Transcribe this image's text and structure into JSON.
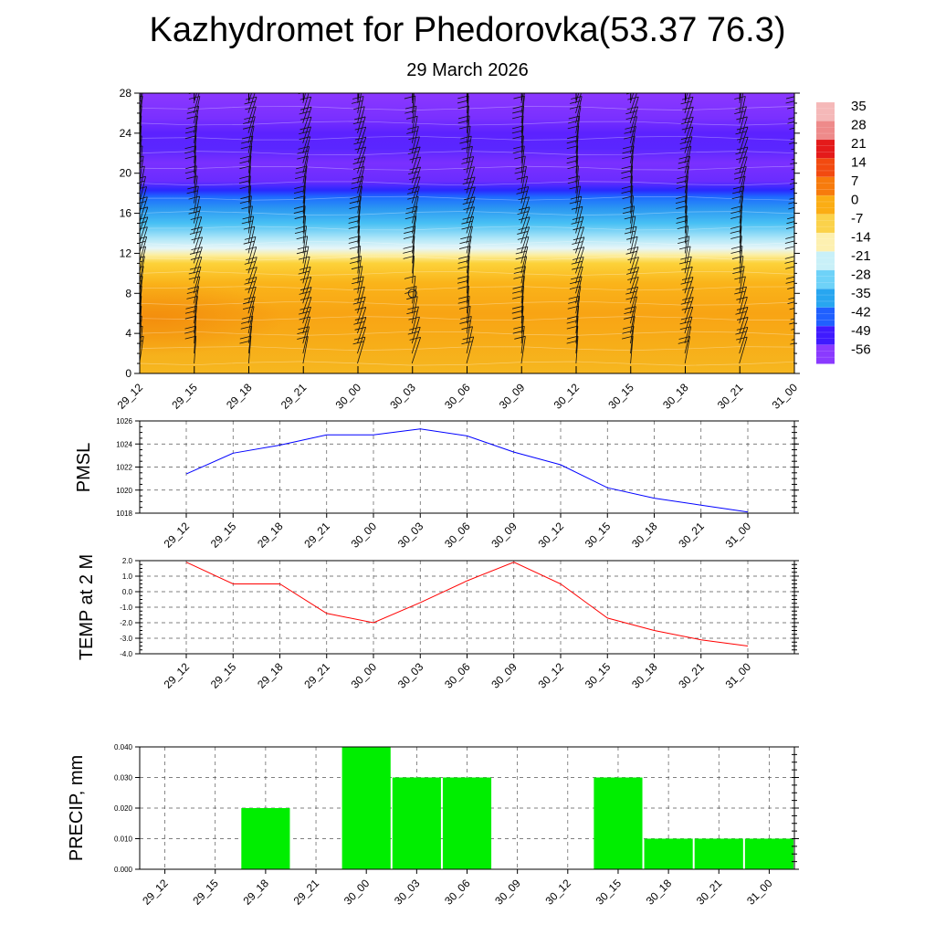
{
  "title": "Kazhydromet for Phedorovka(53.37 76.3)",
  "subtitle": "29 March 2026",
  "time_labels": [
    "29_12",
    "29_15",
    "29_18",
    "29_21",
    "30_00",
    "30_03",
    "30_06",
    "30_09",
    "30_12",
    "30_15",
    "30_18",
    "30_21",
    "31_00"
  ],
  "chart_data": [
    {
      "type": "heatmap",
      "name": "temperature-profile",
      "y_ticks": [
        0,
        4,
        8,
        12,
        16,
        20,
        24,
        28
      ],
      "ylim": [
        0,
        28
      ],
      "colorbar_labels": [
        "35",
        "28",
        "21",
        "14",
        "7",
        "0",
        "-7",
        "-14",
        "-21",
        "-28",
        "-35",
        "-42",
        "-49",
        "-56"
      ],
      "colorbar_colors": [
        "#f5b8b8",
        "#ee8a8a",
        "#e41a1a",
        "#f24a10",
        "#f77b0c",
        "#fbad14",
        "#fbd24a",
        "#fdf0b0",
        "#c8f0f8",
        "#6ed2f8",
        "#28a6f0",
        "#2060ff",
        "#3f1aff",
        "#8a3aff"
      ],
      "layers": [
        {
          "z": 0,
          "color": "#f6b720"
        },
        {
          "z": 3,
          "color": "#f7ad18"
        },
        {
          "z": 6,
          "color": "#f8a414"
        },
        {
          "z": 9,
          "color": "#fab41a"
        },
        {
          "z": 11,
          "color": "#fcd23a"
        },
        {
          "z": 11.8,
          "color": "#fdee9e"
        },
        {
          "z": 12.5,
          "color": "#e6f6f8"
        },
        {
          "z": 13.5,
          "color": "#aee6f8"
        },
        {
          "z": 15,
          "color": "#48c0f4"
        },
        {
          "z": 16.5,
          "color": "#2a96f2"
        },
        {
          "z": 17.6,
          "color": "#1e6cff"
        },
        {
          "z": 18.3,
          "color": "#2a28ff"
        },
        {
          "z": 19.2,
          "color": "#6a2cff"
        },
        {
          "z": 21,
          "color": "#7a30ff"
        },
        {
          "z": 22.5,
          "color": "#5a26ff"
        },
        {
          "z": 24,
          "color": "#5c22ff"
        },
        {
          "z": 25.5,
          "color": "#7a30ff"
        },
        {
          "z": 28,
          "color": "#8b38ff"
        }
      ],
      "warm_anomaly": {
        "t": 0.3,
        "z": 5.5,
        "color": "#f28a0c"
      },
      "wind_levels": [
        1,
        2,
        3,
        4,
        5,
        6,
        7,
        8,
        9,
        10,
        11,
        12,
        13,
        14,
        15,
        16,
        17,
        18,
        19,
        20,
        21,
        22,
        23,
        24,
        25,
        26,
        27
      ],
      "wind_columns": 13,
      "calm_marker": {
        "t": 5,
        "z": 8
      }
    },
    {
      "type": "line",
      "name": "PMSL",
      "ylabel": "PMSL",
      "ylim": [
        1018,
        1026
      ],
      "y_ticks": [
        1018,
        1020,
        1022,
        1024,
        1026
      ],
      "values": [
        1021.4,
        1023.2,
        1023.9,
        1024.8,
        1024.8,
        1025.3,
        1024.7,
        1023.3,
        1022.2,
        1020.2,
        1019.3,
        1018.7,
        1018.1
      ],
      "color": "#0000ff"
    },
    {
      "type": "line",
      "name": "TEMP at 2 M",
      "ylabel": "TEMP at 2 M",
      "ylim": [
        -4,
        2
      ],
      "y_ticks": [
        -4,
        -3,
        -2,
        -1,
        0,
        1,
        2
      ],
      "y_tick_labels": [
        "-4.0",
        "-3.0",
        "-2.0",
        "-1.0",
        "0.0",
        "1.0",
        "2.0"
      ],
      "values": [
        1.9,
        0.5,
        0.5,
        -1.4,
        -2.0,
        -0.7,
        0.7,
        1.9,
        0.5,
        -1.7,
        -2.5,
        -3.1,
        -3.5
      ],
      "color": "#ff0000"
    },
    {
      "type": "bar",
      "name": "PRECIP, mm",
      "ylabel": "PRECIP, mm",
      "ylim": [
        0,
        0.04
      ],
      "y_ticks": [
        0,
        0.01,
        0.02,
        0.03,
        0.04
      ],
      "y_tick_labels": [
        "0.000",
        "0.010",
        "0.020",
        "0.030",
        "0.040"
      ],
      "categories": [
        "29_12",
        "29_15",
        "29_18",
        "29_21",
        "30_00",
        "30_03",
        "30_06",
        "30_09",
        "30_12",
        "30_15",
        "30_18",
        "30_21",
        "31_00"
      ],
      "values": [
        0,
        0,
        0.02,
        0,
        0.04,
        0.03,
        0.03,
        0,
        0,
        0.03,
        0.01,
        0.01,
        0.01
      ],
      "color": "#00ee00"
    }
  ]
}
